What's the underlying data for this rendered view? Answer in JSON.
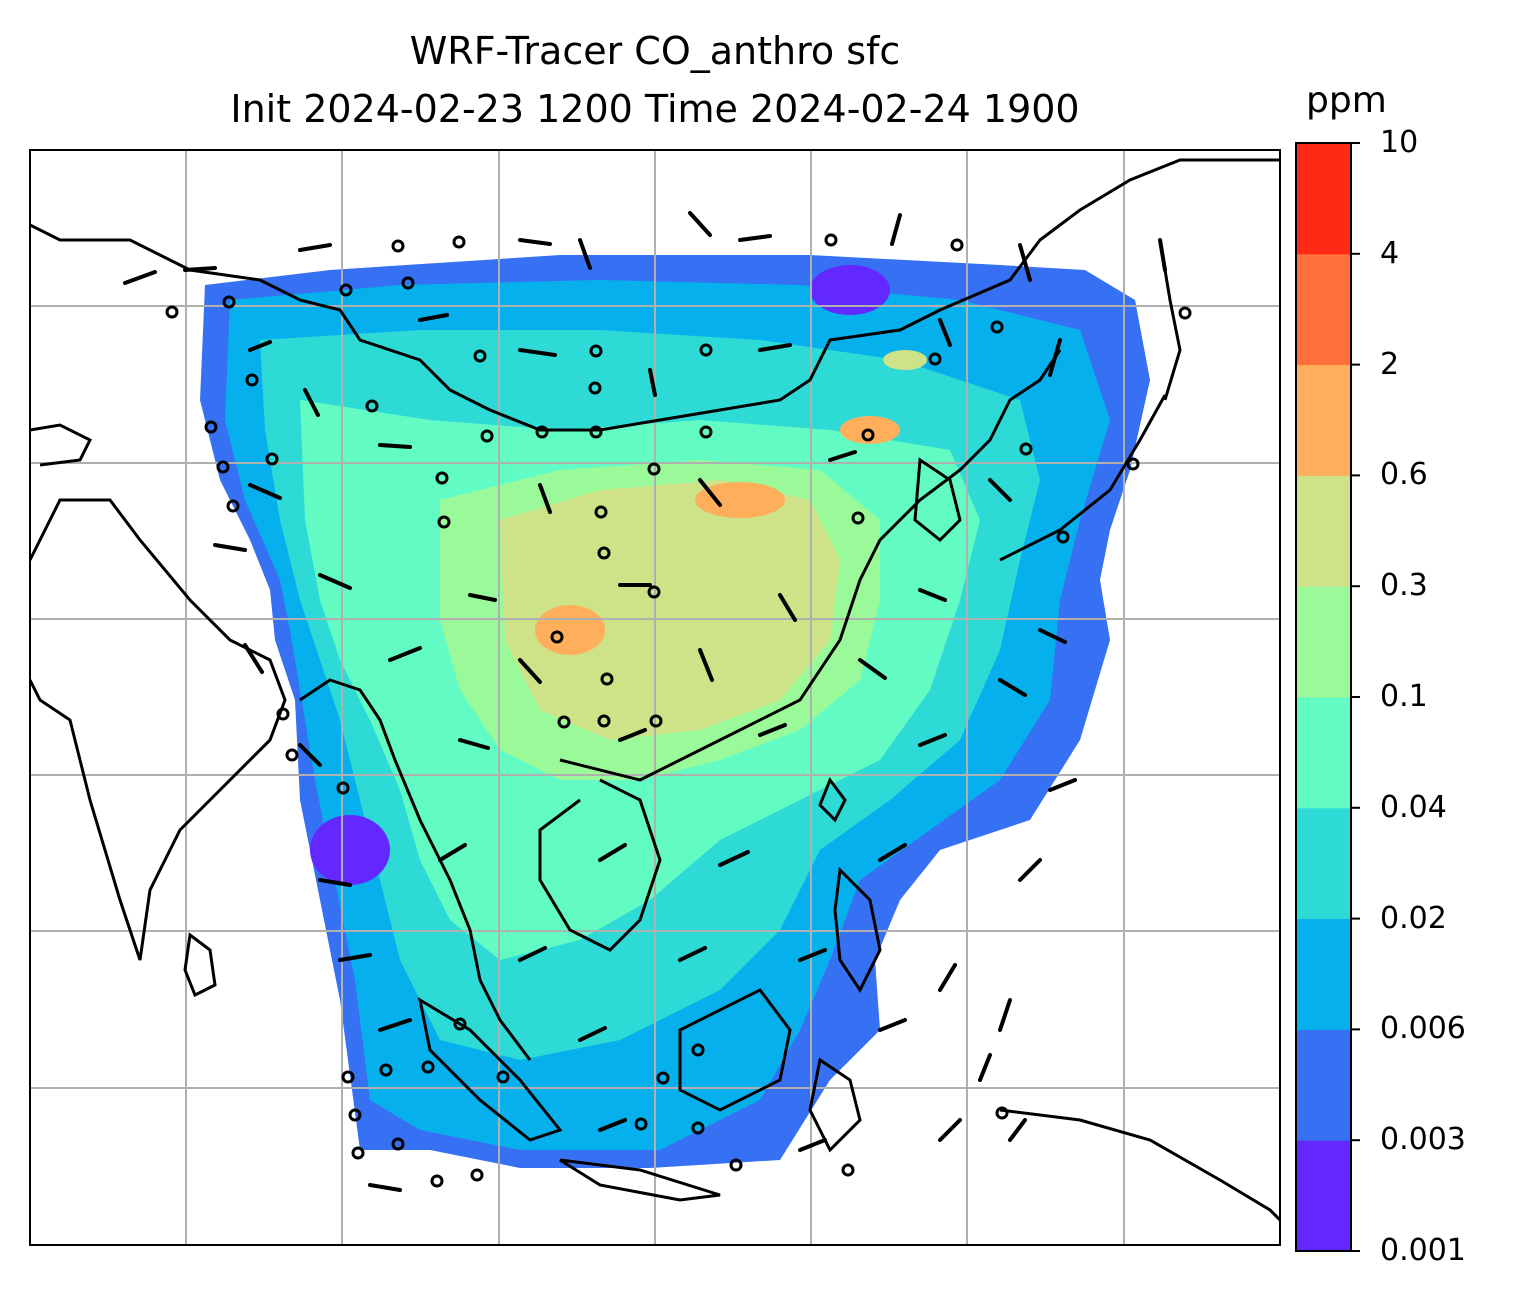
{
  "title": {
    "line1": "WRF-Tracer CO_anthro sfc",
    "line2": "Init 2024-02-23 1200 Time 2024-02-24 1900"
  },
  "colorbar": {
    "unit": "ppm",
    "levels": [
      "0.001",
      "0.003",
      "0.006",
      "0.02",
      "0.04",
      "0.1",
      "0.3",
      "0.6",
      "2",
      "4",
      "10"
    ],
    "colors": [
      "#6228ff",
      "#3671f4",
      "#06b0ec",
      "#2edad6",
      "#62fbc4",
      "#9afa9a",
      "#cee287",
      "#ffaf5c",
      "#ff703a",
      "#ff2a15"
    ]
  },
  "map": {
    "field": "CO_anthro",
    "level": "sfc",
    "gridlines": true,
    "coastlines": true,
    "wind_barbs": true
  }
}
